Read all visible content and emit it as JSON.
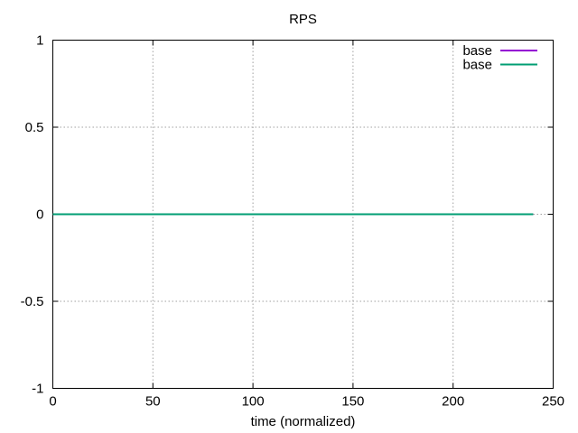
{
  "chart_data": {
    "type": "line",
    "title": "RPS",
    "xlabel": "time (normalized)",
    "ylabel": "",
    "xlim": [
      0,
      250
    ],
    "ylim": [
      -1,
      1
    ],
    "x_ticks": [
      0,
      50,
      100,
      150,
      200,
      250
    ],
    "y_ticks": [
      -1,
      -0.5,
      0,
      0.5,
      1
    ],
    "x_tick_labels": [
      "0",
      "50",
      "100",
      "150",
      "200",
      "250"
    ],
    "y_tick_labels": [
      "-1",
      "-0.5",
      "0",
      "0.5",
      "1"
    ],
    "grid": true,
    "legend_position": "top-right",
    "series": [
      {
        "name": "base",
        "color": "#9400d3",
        "x": [
          0,
          240
        ],
        "y": [
          0,
          0
        ]
      },
      {
        "name": "base",
        "color": "#009e73",
        "x": [
          0,
          240
        ],
        "y": [
          0,
          0
        ]
      }
    ]
  }
}
